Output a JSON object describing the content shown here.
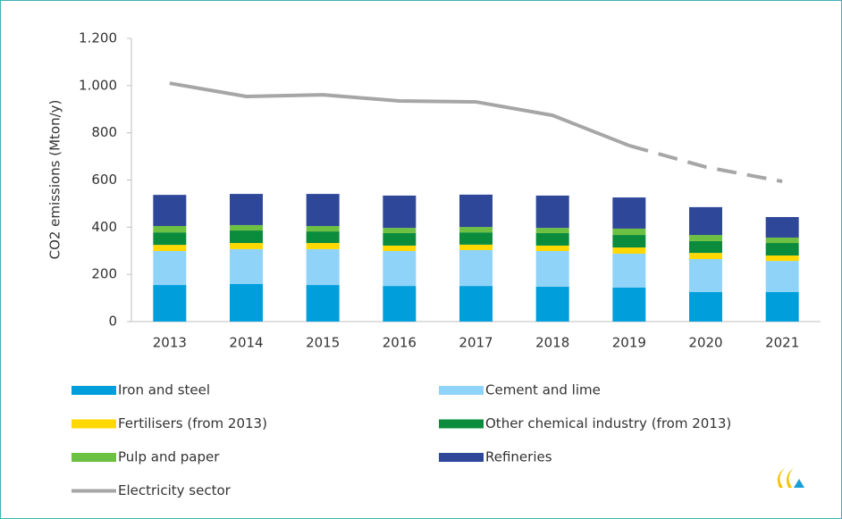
{
  "chart_data": {
    "type": "stacked-bar-line",
    "ylabel": "CO2 emissions (Mton/y)",
    "categories": [
      "2013",
      "2014",
      "2015",
      "2016",
      "2017",
      "2018",
      "2019",
      "2020",
      "2021"
    ],
    "ylim": [
      0,
      1200
    ],
    "yticks": [
      0,
      200,
      400,
      600,
      800,
      {
        "value": 1000,
        "label": "1.000"
      },
      {
        "value": 1200,
        "label": "1.200"
      }
    ],
    "series": [
      {
        "name": "Iron and steel",
        "color": "#009fdb",
        "kind": "bar",
        "values": [
          155,
          159,
          155,
          151,
          151,
          148,
          144,
          125,
          125
        ]
      },
      {
        "name": "Cement and lime",
        "color": "#8fd3f8",
        "kind": "bar",
        "values": [
          144,
          148,
          152,
          148,
          152,
          151,
          144,
          140,
          132
        ]
      },
      {
        "name": "Fertilisers (from 2013)",
        "color": "#ffd800",
        "kind": "bar",
        "values": [
          26,
          26,
          26,
          23,
          23,
          23,
          26,
          26,
          23
        ]
      },
      {
        "name": "Other chemical industry (from 2013)",
        "color": "#0a8c3c",
        "kind": "bar",
        "values": [
          53,
          53,
          49,
          53,
          52,
          53,
          53,
          50,
          53
        ]
      },
      {
        "name": "Pulp and paper",
        "color": "#6cc042",
        "kind": "bar",
        "values": [
          27,
          23,
          23,
          22,
          23,
          22,
          27,
          26,
          23
        ]
      },
      {
        "name": "Refineries",
        "color": "#2f4799",
        "kind": "bar",
        "values": [
          132,
          132,
          136,
          137,
          137,
          137,
          132,
          118,
          87
        ]
      },
      {
        "name": "Electricity sector",
        "color": "#a6a6a6",
        "kind": "line",
        "dash_from": "2019",
        "values": [
          1010,
          954,
          961,
          935,
          931,
          874,
          746,
          655,
          594
        ]
      }
    ]
  }
}
